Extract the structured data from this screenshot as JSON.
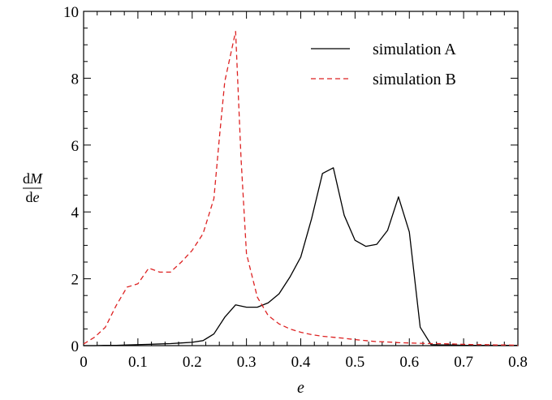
{
  "chart_data": {
    "type": "line",
    "title": "",
    "xlabel": "e",
    "ylabel": {
      "numerator_prefix": "d",
      "numerator_var": "M",
      "denominator_prefix": "d",
      "denominator_var": "e"
    },
    "xlim": [
      0,
      0.8
    ],
    "ylim": [
      0,
      10
    ],
    "x_ticks": [
      "0",
      "0.1",
      "0.2",
      "0.3",
      "0.4",
      "0.5",
      "0.6",
      "0.7",
      "0.8"
    ],
    "y_ticks": [
      "0",
      "2",
      "4",
      "6",
      "8",
      "10"
    ],
    "grid": false,
    "legend_position": "top-right",
    "series": [
      {
        "name": "simulation A",
        "color": "#000000",
        "dash": "solid",
        "x": [
          0,
          0.02,
          0.04,
          0.06,
          0.08,
          0.1,
          0.12,
          0.14,
          0.16,
          0.18,
          0.2,
          0.22,
          0.24,
          0.26,
          0.28,
          0.3,
          0.32,
          0.34,
          0.36,
          0.38,
          0.4,
          0.42,
          0.44,
          0.46,
          0.48,
          0.5,
          0.52,
          0.54,
          0.56,
          0.58,
          0.6,
          0.62,
          0.64,
          0.66,
          0.68,
          0.7,
          0.72,
          0.74,
          0.76,
          0.78,
          0.8
        ],
        "y": [
          0,
          0,
          0.01,
          0.01,
          0.02,
          0.03,
          0.04,
          0.05,
          0.06,
          0.08,
          0.1,
          0.15,
          0.35,
          0.85,
          1.22,
          1.15,
          1.15,
          1.28,
          1.55,
          2.05,
          2.65,
          3.8,
          5.15,
          5.32,
          3.9,
          3.15,
          2.97,
          3.03,
          3.45,
          4.45,
          3.4,
          0.55,
          0.03,
          0.02,
          0.02,
          0.01,
          0.01,
          0.01,
          0.01,
          0.01,
          0.01
        ]
      },
      {
        "name": "simulation B",
        "color": "#dd2222",
        "dash": "dashed",
        "x": [
          0,
          0.02,
          0.04,
          0.06,
          0.08,
          0.1,
          0.12,
          0.14,
          0.16,
          0.18,
          0.2,
          0.22,
          0.24,
          0.25,
          0.26,
          0.27,
          0.28,
          0.29,
          0.3,
          0.32,
          0.34,
          0.36,
          0.38,
          0.4,
          0.42,
          0.44,
          0.46,
          0.48,
          0.5,
          0.52,
          0.54,
          0.56,
          0.58,
          0.6,
          0.62,
          0.64,
          0.66,
          0.68,
          0.7,
          0.72,
          0.74,
          0.76,
          0.78,
          0.8
        ],
        "y": [
          0.05,
          0.25,
          0.55,
          1.2,
          1.75,
          1.85,
          2.32,
          2.2,
          2.2,
          2.5,
          2.85,
          3.35,
          4.4,
          6.2,
          7.9,
          8.65,
          9.4,
          5.6,
          2.75,
          1.45,
          0.9,
          0.65,
          0.5,
          0.4,
          0.33,
          0.28,
          0.25,
          0.22,
          0.18,
          0.15,
          0.12,
          0.11,
          0.09,
          0.08,
          0.07,
          0.06,
          0.06,
          0.05,
          0.04,
          0.03,
          0.03,
          0.02,
          0.02,
          0.01
        ]
      }
    ]
  }
}
